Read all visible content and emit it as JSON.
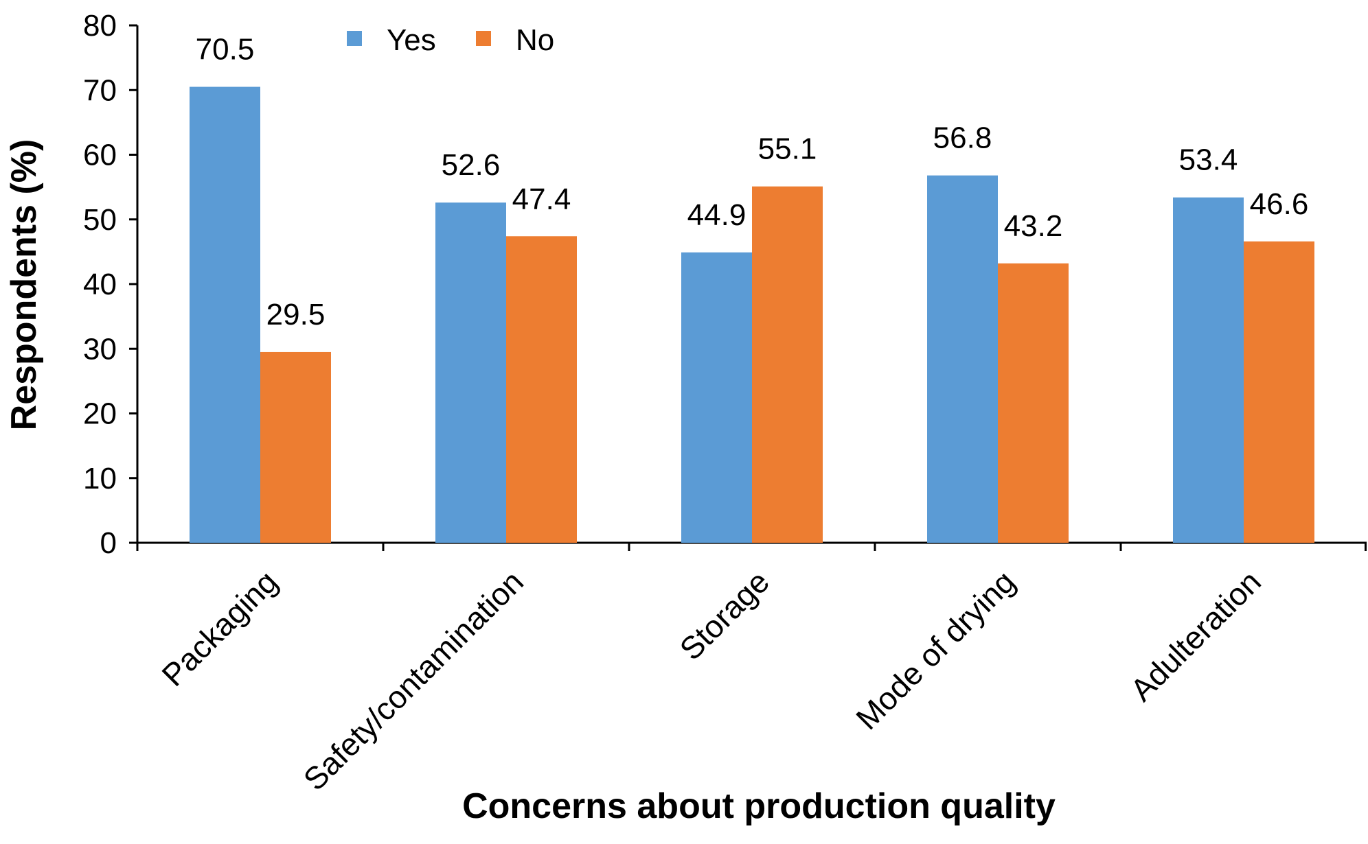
{
  "chart_data": {
    "type": "bar",
    "categories": [
      "Packaging",
      "Safety/contamination",
      "Storage",
      "Mode of drying",
      "Adulteration"
    ],
    "series": [
      {
        "name": "Yes",
        "values": [
          70.5,
          52.6,
          44.9,
          56.8,
          53.4
        ],
        "color": "#5B9BD5"
      },
      {
        "name": "No",
        "values": [
          29.5,
          47.4,
          55.1,
          43.2,
          46.6
        ],
        "color": "#ED7D31"
      }
    ],
    "data_labels": [
      [
        "70.5",
        "52.6",
        "44.9",
        "56.8",
        "53.4"
      ],
      [
        "29.5",
        "47.4",
        "55.1",
        "43.2",
        "46.6"
      ]
    ],
    "title": "",
    "xlabel": "Concerns about production quality",
    "ylabel": "Respondents (%)",
    "ylim": [
      0,
      80
    ],
    "yticks": [
      "0",
      "10",
      "20",
      "30",
      "40",
      "50",
      "60",
      "70",
      "80"
    ],
    "grid": false,
    "legend_position": "top"
  }
}
